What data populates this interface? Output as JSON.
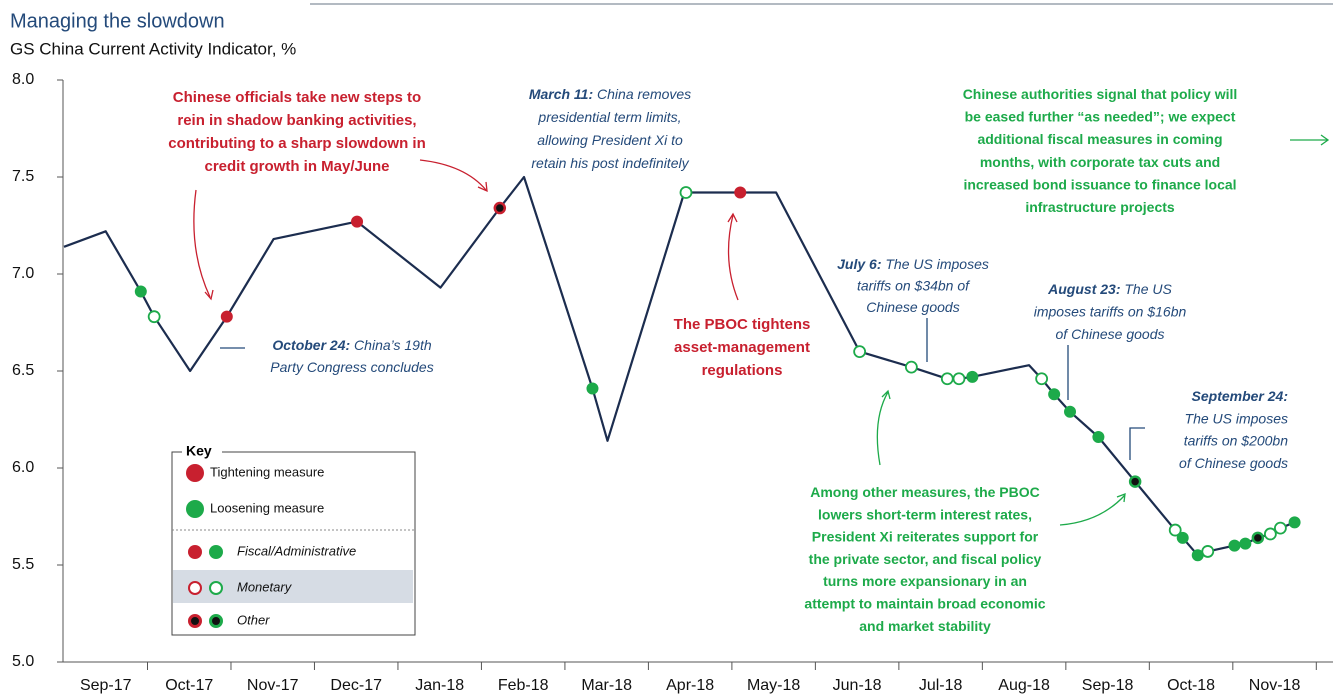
{
  "chart_data": {
    "type": "line",
    "title": "Managing the slowdown",
    "subtitle": "GS China Current Activity Indicator, %",
    "xlim": [
      0,
      15.2
    ],
    "xticks": [
      {
        "value": 0.5,
        "label": "Sep-17"
      },
      {
        "value": 1.5,
        "label": "Oct-17"
      },
      {
        "value": 2.5,
        "label": "Nov-17"
      },
      {
        "value": 3.5,
        "label": "Dec-17"
      },
      {
        "value": 4.5,
        "label": "Jan-18"
      },
      {
        "value": 5.5,
        "label": "Feb-18"
      },
      {
        "value": 6.5,
        "label": "Mar-18"
      },
      {
        "value": 7.5,
        "label": "Apr-18"
      },
      {
        "value": 8.5,
        "label": "May-18"
      },
      {
        "value": 9.5,
        "label": "Jun-18"
      },
      {
        "value": 10.5,
        "label": "Jul-18"
      },
      {
        "value": 11.5,
        "label": "Aug-18"
      },
      {
        "value": 12.5,
        "label": "Sep-18"
      },
      {
        "value": 13.5,
        "label": "Oct-18"
      },
      {
        "value": 14.5,
        "label": "Nov-18"
      }
    ],
    "ylim": [
      5,
      8
    ],
    "yticks": [
      {
        "value": 8,
        "label": "8.0"
      },
      {
        "value": 7.5,
        "label": "7.5"
      },
      {
        "value": 7,
        "label": "7.0"
      },
      {
        "value": 6.5,
        "label": "6.5"
      },
      {
        "value": 6,
        "label": "6.0"
      },
      {
        "value": 5.5,
        "label": "5.5"
      },
      {
        "value": 5,
        "label": "5.0"
      }
    ],
    "grid": false,
    "line_color": "#1c2d4f",
    "x": [
      0,
      0.5,
      0.92,
      1.08,
      1.51,
      1.95,
      2.51,
      3.51,
      4.51,
      5.22,
      5.51,
      6.33,
      6.51,
      7.43,
      7.45,
      8.1,
      8.53,
      9.53,
      10.15,
      10.58,
      10.72,
      10.88,
      11.56,
      11.71,
      11.86,
      12.05,
      12.39,
      12.83,
      13.31,
      13.4,
      13.58,
      13.7,
      14.02,
      14.15,
      14.3,
      14.45,
      14.57,
      14.74
    ],
    "values": [
      7.14,
      7.22,
      6.91,
      6.78,
      6.5,
      6.78,
      7.18,
      7.27,
      6.93,
      7.34,
      7.5,
      6.41,
      6.14,
      7.42,
      7.42,
      7.42,
      7.42,
      6.6,
      6.52,
      6.46,
      6.46,
      6.47,
      6.53,
      6.46,
      6.38,
      6.29,
      6.16,
      5.93,
      5.68,
      5.64,
      5.55,
      5.57,
      5.6,
      5.61,
      5.64,
      5.66,
      5.69,
      5.72
    ],
    "marker_colors": [
      null,
      null,
      "#1daa4a",
      "#1daa4a",
      null,
      "#c8202f",
      null,
      "#c8202f",
      null,
      "#c8202f",
      null,
      "#1daa4a",
      null,
      null,
      "#1daa4a",
      "#c8202f",
      null,
      "#1daa4a",
      "#1daa4a",
      "#1daa4a",
      "#1daa4a",
      "#1daa4a",
      null,
      "#1daa4a",
      "#1daa4a",
      "#1daa4a",
      "#1daa4a",
      "#1daa4a",
      "#1daa4a",
      "#1daa4a",
      "#1daa4a",
      "#1daa4a",
      "#1daa4a",
      "#1daa4a",
      "#1daa4a",
      "#1daa4a",
      "#1daa4a",
      "#1daa4a"
    ],
    "marker_kinds": [
      null,
      null,
      "fiscal",
      "monetary",
      null,
      "fiscal",
      null,
      "fiscal",
      null,
      "other",
      null,
      "fiscal",
      null,
      null,
      "monetary",
      "fiscal",
      null,
      "monetary",
      "monetary",
      "monetary",
      "monetary",
      "fiscal",
      null,
      "monetary",
      "fiscal",
      "fiscal",
      "fiscal",
      "other",
      "monetary",
      "fiscal",
      "fiscal",
      "monetary",
      "fiscal",
      "fiscal",
      "other",
      "monetary",
      "monetary",
      "fiscal"
    ],
    "annotations": [
      {
        "color": "red",
        "lines": [
          "Chinese officials take new steps to",
          "rein in shadow banking activities,",
          "contributing to a sharp slowdown in",
          "credit growth in May/June"
        ]
      },
      {
        "color": "blue",
        "lead": "March 11:",
        "lines": [
          " China removes",
          "presidential term limits,",
          "allowing President Xi to",
          "retain his post indefinitely"
        ]
      },
      {
        "color": "green",
        "lines": [
          "Chinese authorities signal that policy will",
          "be eased further “as needed”; we expect",
          "additional fiscal measures in coming",
          "months, with corporate tax cuts and",
          "increased bond issuance to finance local",
          "infrastructure projects"
        ]
      },
      {
        "color": "blue",
        "lead": "October 24:",
        "lines": [
          " China’s 19th",
          "Party Congress concludes"
        ]
      },
      {
        "color": "red",
        "lines": [
          "The PBOC tightens",
          "asset-management",
          "regulations"
        ]
      },
      {
        "color": "blue",
        "lead": "July 6:",
        "lines": [
          " The US imposes",
          "tariffs on  $34bn of",
          "Chinese goods"
        ]
      },
      {
        "color": "blue",
        "lead": "August 23:",
        "lines": [
          " The US",
          "imposes tariffs on $16bn",
          "of Chinese goods"
        ]
      },
      {
        "color": "blue",
        "lead": "September 24:",
        "lines": [
          "",
          "The US imposes",
          "tariffs on $200bn",
          "of Chinese goods"
        ]
      },
      {
        "color": "green",
        "lines": [
          "Among other measures, the PBOC",
          "lowers short-term interest rates,",
          "President Xi reiterates support for",
          "the private sector, and fiscal policy",
          "turns more expansionary  in an",
          "attempt to maintain broad economic",
          "and market stability"
        ]
      }
    ],
    "key": {
      "title": "Key",
      "tightening": {
        "label": "Tightening measure",
        "color": "#c8202f"
      },
      "loosening": {
        "label": "Loosening measure",
        "color": "#1daa4a"
      },
      "fiscal": "Fiscal/Administrative",
      "monetary": "Monetary",
      "other": "Other"
    }
  }
}
